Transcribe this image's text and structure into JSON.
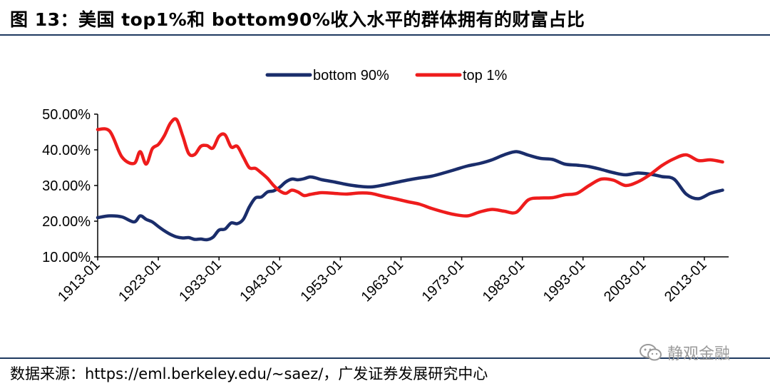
{
  "figure": {
    "title": "图 13：美国 top1%和 bottom90%收入水平的群体拥有的财富占比",
    "source": "数据来源：https://eml.berkeley.edu/~saez/，广发证券发展研究中心",
    "watermark": "静观金融",
    "watermark_icon": "wechat-icon"
  },
  "chart_data": {
    "type": "line",
    "title": "",
    "xlabel": "",
    "ylabel": "",
    "ylim": [
      10,
      50
    ],
    "yticks": [
      "10.00%",
      "20.00%",
      "30.00%",
      "40.00%",
      "50.00%"
    ],
    "xticks": [
      "1913-01",
      "1923-01",
      "1933-01",
      "1943-01",
      "1953-01",
      "1963-01",
      "1973-01",
      "1983-01",
      "1993-01",
      "2003-01",
      "2013-01"
    ],
    "xlim": [
      1913,
      2017
    ],
    "grid": false,
    "legend_position": "top",
    "x": [
      1913,
      1915,
      1917,
      1919,
      1920,
      1921,
      1922,
      1923,
      1924,
      1925,
      1926,
      1927,
      1928,
      1929,
      1930,
      1931,
      1932,
      1933,
      1934,
      1935,
      1936,
      1937,
      1938,
      1939,
      1940,
      1941,
      1942,
      1943,
      1944,
      1945,
      1946,
      1947,
      1948,
      1949,
      1950,
      1952,
      1954,
      1956,
      1958,
      1960,
      1962,
      1964,
      1966,
      1968,
      1970,
      1972,
      1974,
      1976,
      1978,
      1980,
      1982,
      1984,
      1986,
      1988,
      1990,
      1992,
      1994,
      1996,
      1998,
      2000,
      2002,
      2004,
      2006,
      2008,
      2010,
      2012,
      2014,
      2016
    ],
    "series": [
      {
        "name": "bottom 90%",
        "color": "#1a2d6b",
        "values": [
          21,
          21.5,
          21.2,
          19.8,
          21.5,
          20.5,
          19.8,
          18.5,
          17.3,
          16.3,
          15.6,
          15.3,
          15.4,
          14.9,
          15.0,
          14.8,
          15.5,
          17.5,
          17.8,
          19.5,
          19.3,
          20.5,
          24,
          26.5,
          26.8,
          28.2,
          28.5,
          29.5,
          31,
          31.8,
          31.6,
          31.9,
          32.4,
          32.1,
          31.6,
          31,
          30.3,
          29.8,
          29.6,
          30.1,
          30.8,
          31.5,
          32.1,
          32.6,
          33.5,
          34.5,
          35.5,
          36.2,
          37.2,
          38.6,
          39.5,
          38.5,
          37.6,
          37.3,
          36,
          35.7,
          35.3,
          34.5,
          33.6,
          33,
          33.5,
          33.2,
          32.5,
          31.8,
          27.6,
          26.3,
          27.8,
          28.7
        ]
      },
      {
        "name": "top 1%",
        "color": "#ee1c1c",
        "values": [
          45.7,
          45.2,
          38,
          36.2,
          39.5,
          36,
          40.3,
          41.5,
          44,
          47.5,
          48.5,
          44,
          39,
          38.7,
          41,
          41.2,
          40.5,
          43.8,
          44.2,
          40.8,
          41,
          38,
          35,
          34.8,
          33.5,
          32,
          30,
          28.5,
          27.8,
          28.7,
          28.2,
          27.2,
          27.5,
          27.8,
          28,
          27.8,
          27.6,
          27.9,
          27.8,
          27,
          26.3,
          25.5,
          24.8,
          23.6,
          22.6,
          21.8,
          21.5,
          22.6,
          23.3,
          22.8,
          22.5,
          26,
          26.5,
          26.6,
          27.4,
          27.8,
          30,
          31.8,
          31.5,
          30,
          31,
          33,
          35.6,
          37.5,
          38.6,
          37,
          37.2,
          36.6
        ]
      }
    ]
  }
}
